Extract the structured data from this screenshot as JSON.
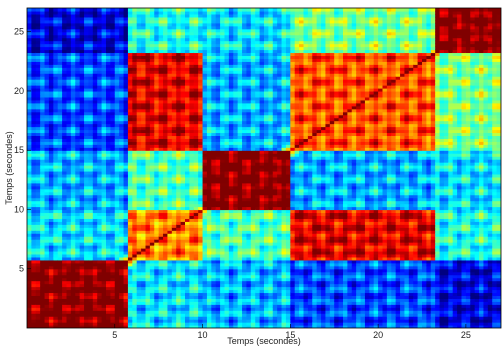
{
  "chart_data": {
    "type": "heatmap",
    "title": "",
    "xlabel": "Temps (secondes)",
    "ylabel": "Temps (secondes)",
    "xlim": [
      0,
      27
    ],
    "ylim": [
      0,
      27
    ],
    "x_ticks": [
      5,
      10,
      15,
      20,
      25
    ],
    "y_ticks": [
      5,
      10,
      15,
      20,
      25
    ],
    "grid": false,
    "colormap": "jet",
    "value_range": [
      0,
      1
    ],
    "segments": [
      {
        "start": 0,
        "end": 5.7,
        "level": 0.25
      },
      {
        "start": 5.7,
        "end": 10,
        "level": 0.5
      },
      {
        "start": 10,
        "end": 15,
        "level": 0.9
      },
      {
        "start": 15,
        "end": 23.2,
        "level": 0.5
      },
      {
        "start": 23.2,
        "end": 27,
        "level": 0.25
      }
    ],
    "similarity_matrix": [
      [
        1.0,
        0.35,
        0.3,
        0.2,
        0.1
      ],
      [
        0.35,
        0.75,
        0.45,
        0.9,
        0.4
      ],
      [
        0.3,
        0.45,
        1.0,
        0.3,
        0.35
      ],
      [
        0.2,
        0.9,
        0.3,
        0.8,
        0.5
      ],
      [
        0.1,
        0.4,
        0.35,
        0.5,
        1.0
      ]
    ]
  }
}
